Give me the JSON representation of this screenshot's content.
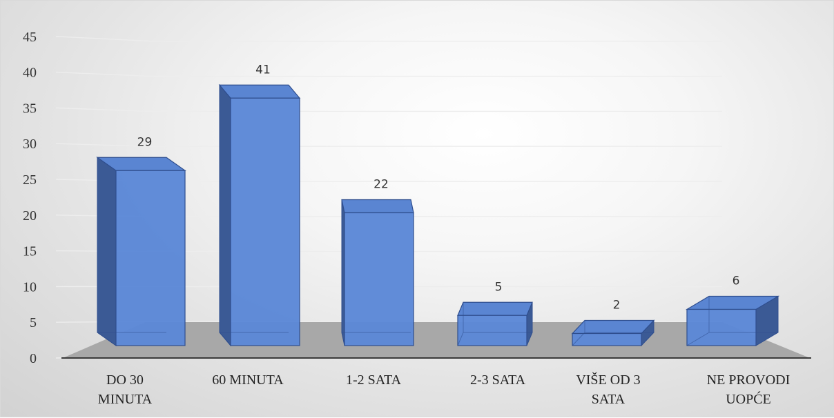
{
  "chart_data": {
    "type": "bar",
    "style": "3d-column",
    "categories": [
      [
        "DO 30",
        "MINUTA"
      ],
      [
        "60 MINUTA"
      ],
      [
        "1-2 SATA"
      ],
      [
        "2-3 SATA"
      ],
      [
        "VIŠE OD 3",
        "SATA"
      ],
      [
        "NE PROVODI",
        "UOPĆE"
      ]
    ],
    "values": [
      29,
      41,
      22,
      5,
      2,
      6
    ],
    "data_labels": [
      "29",
      "41",
      "22",
      "5",
      "2",
      "6"
    ],
    "ylim": [
      0,
      45
    ],
    "yticks": [
      "0",
      "5",
      "10",
      "15",
      "20",
      "25",
      "30",
      "35",
      "40",
      "45"
    ],
    "grid": true,
    "legend": "none",
    "title": "",
    "xlabel": "",
    "ylabel": "",
    "colors": {
      "bar_front": "#5b87d6",
      "bar_side": "#3b5a95",
      "bar_top": "#5a85d2",
      "bar_edge": "#2f4e8e",
      "floor": "#a8a8a8",
      "gridline": "#ededed"
    }
  }
}
